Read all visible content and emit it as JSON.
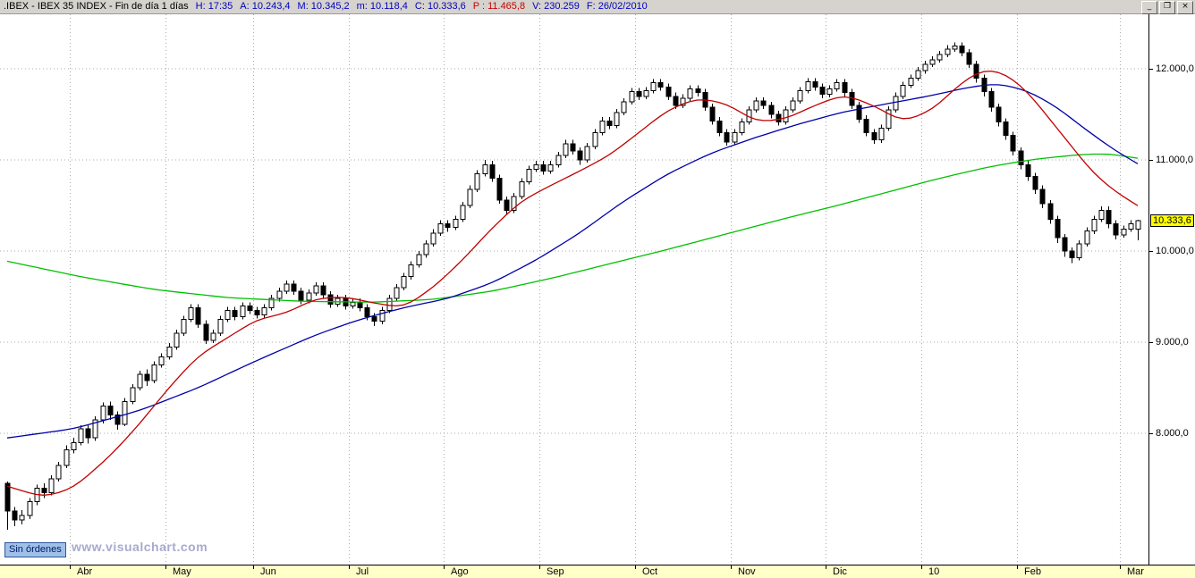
{
  "window": {
    "title_segments": [
      {
        "text": ".IBEX - IBEX 35 INDEX - Fin de día 1 días",
        "color": "#000000"
      },
      {
        "text": "H: 17:35",
        "color": "#0000c0"
      },
      {
        "text": "A: 10.243,4",
        "color": "#0000c0"
      },
      {
        "text": "M: 10.345,2",
        "color": "#0000c0"
      },
      {
        "text": "m: 10.118,4",
        "color": "#0000c0"
      },
      {
        "text": "C: 10.333,6",
        "color": "#0000c0"
      },
      {
        "text": "P : 11.465,8",
        "color": "#c80000"
      },
      {
        "text": "V: 230.259",
        "color": "#0000c0"
      },
      {
        "text": "F: 26/02/2010",
        "color": "#0000c0"
      }
    ],
    "buttons": {
      "minimize": "_",
      "restore": "❐",
      "close": "×"
    }
  },
  "footer": {
    "orders_label": "Sin órdenes",
    "watermark": "www.visualchart.com"
  },
  "chart_data": {
    "type": "candlestick",
    "title": ".IBEX - IBEX 35 INDEX",
    "period": "Fin de día 1 días",
    "last_quote": {
      "time": "17:35",
      "open": 10243.4,
      "high": 10345.2,
      "low": 10118.4,
      "close": 10333.6,
      "prev": 11465.8,
      "volume": 230259,
      "date": "26/02/2010"
    },
    "grid": {
      "color": "#ababab",
      "dash": "1,3"
    },
    "colors": {
      "up_fill": "#ffffff",
      "down_fill": "#000000",
      "outline": "#000000",
      "ma_fast": "#c00000",
      "ma_medium": "#0000a8",
      "ma_slow": "#00c000",
      "price_tag_bg": "#ffff00"
    },
    "y_axis": {
      "view_max": 12600,
      "view_min": 6560,
      "ticks": [
        {
          "value": 12000,
          "label": "12.000,0"
        },
        {
          "value": 11000,
          "label": "11.000,0"
        },
        {
          "value": 10000,
          "label": "10.000,0"
        },
        {
          "value": 9000,
          "label": "9.000,0"
        },
        {
          "value": 8000,
          "label": "8.000,0"
        }
      ]
    },
    "current_price": {
      "label": "10.333,6",
      "value": 10333.6
    },
    "months": [
      {
        "label": "Abr",
        "i": 9
      },
      {
        "label": "May",
        "i": 22
      },
      {
        "label": "Jun",
        "i": 34
      },
      {
        "label": "Jul",
        "i": 47
      },
      {
        "label": "Ago",
        "i": 60
      },
      {
        "label": "Sep",
        "i": 73
      },
      {
        "label": "Oct",
        "i": 86
      },
      {
        "label": "Nov",
        "i": 99
      },
      {
        "label": "Dic",
        "i": 112
      },
      {
        "label": "10",
        "i": 125
      },
      {
        "label": "Feb",
        "i": 138
      },
      {
        "label": "Mar",
        "i": 152
      }
    ],
    "candles": [
      [
        7450,
        7470,
        6940,
        7150
      ],
      [
        7150,
        7190,
        6980,
        7050
      ],
      [
        7050,
        7160,
        7000,
        7100
      ],
      [
        7100,
        7290,
        7060,
        7250
      ],
      [
        7250,
        7440,
        7210,
        7400
      ],
      [
        7400,
        7450,
        7290,
        7350
      ],
      [
        7350,
        7540,
        7320,
        7500
      ],
      [
        7500,
        7690,
        7470,
        7650
      ],
      [
        7650,
        7870,
        7620,
        7820
      ],
      [
        7820,
        7950,
        7780,
        7900
      ],
      [
        7900,
        8090,
        7870,
        8050
      ],
      [
        8050,
        8090,
        7890,
        7950
      ],
      [
        7950,
        8190,
        7920,
        8150
      ],
      [
        8150,
        8340,
        8110,
        8300
      ],
      [
        8300,
        8350,
        8150,
        8200
      ],
      [
        8200,
        8240,
        8040,
        8100
      ],
      [
        8100,
        8390,
        8080,
        8350
      ],
      [
        8350,
        8540,
        8320,
        8500
      ],
      [
        8500,
        8690,
        8470,
        8650
      ],
      [
        8650,
        8700,
        8520,
        8580
      ],
      [
        8580,
        8790,
        8550,
        8750
      ],
      [
        8750,
        8880,
        8720,
        8840
      ],
      [
        8840,
        8990,
        8810,
        8950
      ],
      [
        8950,
        9140,
        8920,
        9100
      ],
      [
        9100,
        9290,
        9070,
        9250
      ],
      [
        9250,
        9420,
        9220,
        9380
      ],
      [
        9380,
        9420,
        9160,
        9200
      ],
      [
        9200,
        9240,
        8980,
        9020
      ],
      [
        9020,
        9140,
        8990,
        9100
      ],
      [
        9100,
        9290,
        9070,
        9250
      ],
      [
        9250,
        9390,
        9220,
        9350
      ],
      [
        9350,
        9390,
        9240,
        9280
      ],
      [
        9280,
        9440,
        9250,
        9400
      ],
      [
        9400,
        9440,
        9310,
        9350
      ],
      [
        9350,
        9390,
        9260,
        9300
      ],
      [
        9300,
        9420,
        9270,
        9380
      ],
      [
        9380,
        9520,
        9350,
        9480
      ],
      [
        9480,
        9600,
        9450,
        9560
      ],
      [
        9560,
        9680,
        9530,
        9640
      ],
      [
        9640,
        9680,
        9520,
        9560
      ],
      [
        9560,
        9600,
        9420,
        9460
      ],
      [
        9460,
        9580,
        9430,
        9540
      ],
      [
        9540,
        9660,
        9510,
        9620
      ],
      [
        9620,
        9660,
        9480,
        9520
      ],
      [
        9520,
        9560,
        9380,
        9420
      ],
      [
        9420,
        9520,
        9390,
        9480
      ],
      [
        9480,
        9520,
        9360,
        9400
      ],
      [
        9400,
        9480,
        9370,
        9440
      ],
      [
        9440,
        9480,
        9340,
        9380
      ],
      [
        9380,
        9420,
        9240,
        9280
      ],
      [
        9280,
        9320,
        9180,
        9230
      ],
      [
        9230,
        9390,
        9200,
        9350
      ],
      [
        9350,
        9520,
        9320,
        9480
      ],
      [
        9480,
        9640,
        9450,
        9600
      ],
      [
        9600,
        9760,
        9570,
        9720
      ],
      [
        9720,
        9890,
        9690,
        9850
      ],
      [
        9850,
        10000,
        9820,
        9960
      ],
      [
        9960,
        10120,
        9930,
        10080
      ],
      [
        10080,
        10240,
        10050,
        10200
      ],
      [
        10200,
        10340,
        10170,
        10300
      ],
      [
        10300,
        10340,
        10210,
        10260
      ],
      [
        10260,
        10390,
        10230,
        10350
      ],
      [
        10350,
        10540,
        10320,
        10500
      ],
      [
        10500,
        10720,
        10470,
        10680
      ],
      [
        10680,
        10890,
        10650,
        10850
      ],
      [
        10850,
        11000,
        10820,
        10950
      ],
      [
        10950,
        10990,
        10760,
        10800
      ],
      [
        10800,
        10840,
        10520,
        10560
      ],
      [
        10560,
        10600,
        10400,
        10450
      ],
      [
        10450,
        10640,
        10420,
        10600
      ],
      [
        10600,
        10800,
        10570,
        10760
      ],
      [
        10760,
        10940,
        10730,
        10900
      ],
      [
        10900,
        10990,
        10870,
        10950
      ],
      [
        10950,
        10990,
        10840,
        10880
      ],
      [
        10880,
        10990,
        10850,
        10950
      ],
      [
        10950,
        11090,
        10920,
        11050
      ],
      [
        11050,
        11220,
        11020,
        11180
      ],
      [
        11180,
        11220,
        11060,
        11100
      ],
      [
        11100,
        11140,
        10950,
        11000
      ],
      [
        11000,
        11190,
        10970,
        11150
      ],
      [
        11150,
        11340,
        11120,
        11300
      ],
      [
        11300,
        11470,
        11270,
        11430
      ],
      [
        11430,
        11470,
        11340,
        11380
      ],
      [
        11380,
        11560,
        11350,
        11520
      ],
      [
        11520,
        11680,
        11490,
        11640
      ],
      [
        11640,
        11790,
        11610,
        11750
      ],
      [
        11750,
        11790,
        11660,
        11700
      ],
      [
        11700,
        11800,
        11670,
        11760
      ],
      [
        11760,
        11890,
        11730,
        11850
      ],
      [
        11850,
        11890,
        11760,
        11800
      ],
      [
        11800,
        11840,
        11660,
        11700
      ],
      [
        11700,
        11740,
        11560,
        11600
      ],
      [
        11600,
        11720,
        11570,
        11680
      ],
      [
        11680,
        11820,
        11650,
        11780
      ],
      [
        11780,
        11820,
        11700,
        11740
      ],
      [
        11740,
        11780,
        11540,
        11580
      ],
      [
        11580,
        11620,
        11390,
        11430
      ],
      [
        11430,
        11470,
        11260,
        11300
      ],
      [
        11300,
        11340,
        11160,
        11200
      ],
      [
        11200,
        11340,
        11170,
        11300
      ],
      [
        11300,
        11460,
        11270,
        11420
      ],
      [
        11420,
        11590,
        11390,
        11550
      ],
      [
        11550,
        11690,
        11520,
        11650
      ],
      [
        11650,
        11690,
        11560,
        11600
      ],
      [
        11600,
        11640,
        11460,
        11500
      ],
      [
        11500,
        11540,
        11380,
        11420
      ],
      [
        11420,
        11590,
        11390,
        11550
      ],
      [
        11550,
        11690,
        11520,
        11650
      ],
      [
        11650,
        11800,
        11620,
        11760
      ],
      [
        11760,
        11900,
        11730,
        11860
      ],
      [
        11860,
        11900,
        11760,
        11800
      ],
      [
        11800,
        11840,
        11680,
        11720
      ],
      [
        11720,
        11820,
        11690,
        11780
      ],
      [
        11780,
        11890,
        11750,
        11850
      ],
      [
        11850,
        11890,
        11700,
        11740
      ],
      [
        11740,
        11780,
        11560,
        11600
      ],
      [
        11600,
        11640,
        11410,
        11450
      ],
      [
        11450,
        11490,
        11260,
        11300
      ],
      [
        11300,
        11340,
        11180,
        11220
      ],
      [
        11220,
        11390,
        11190,
        11350
      ],
      [
        11350,
        11590,
        11320,
        11550
      ],
      [
        11550,
        11740,
        11520,
        11700
      ],
      [
        11700,
        11860,
        11670,
        11820
      ],
      [
        11820,
        11940,
        11790,
        11900
      ],
      [
        11900,
        12020,
        11870,
        11980
      ],
      [
        11980,
        12090,
        11950,
        12050
      ],
      [
        12050,
        12140,
        12020,
        12100
      ],
      [
        12100,
        12200,
        12070,
        12160
      ],
      [
        12160,
        12260,
        12130,
        12220
      ],
      [
        12220,
        12290,
        12190,
        12250
      ],
      [
        12250,
        12290,
        12140,
        12180
      ],
      [
        12180,
        12220,
        12010,
        12050
      ],
      [
        12050,
        12090,
        11850,
        11900
      ],
      [
        11900,
        11940,
        11700,
        11750
      ],
      [
        11750,
        11790,
        11530,
        11580
      ],
      [
        11580,
        11620,
        11370,
        11420
      ],
      [
        11420,
        11460,
        11220,
        11270
      ],
      [
        11270,
        11310,
        11050,
        11100
      ],
      [
        11100,
        11140,
        10900,
        10950
      ],
      [
        10950,
        10990,
        10770,
        10820
      ],
      [
        10820,
        10860,
        10630,
        10680
      ],
      [
        10680,
        10720,
        10470,
        10520
      ],
      [
        10520,
        10560,
        10300,
        10350
      ],
      [
        10350,
        10390,
        10090,
        10150
      ],
      [
        10150,
        10190,
        9940,
        10000
      ],
      [
        10000,
        10040,
        9870,
        9930
      ],
      [
        9930,
        10120,
        9900,
        10080
      ],
      [
        10080,
        10260,
        10050,
        10220
      ],
      [
        10220,
        10390,
        10190,
        10350
      ],
      [
        10350,
        10490,
        10320,
        10450
      ],
      [
        10450,
        10490,
        10250,
        10300
      ],
      [
        10300,
        10340,
        10130,
        10180
      ],
      [
        10180,
        10280,
        10150,
        10240
      ],
      [
        10240,
        10340,
        10210,
        10300
      ],
      [
        10243,
        10345,
        10118,
        10333.6
      ]
    ],
    "ma": [
      {
        "name": "slow-200d",
        "color_key": "ma_slow",
        "points": [
          [
            0,
            9890
          ],
          [
            10,
            9720
          ],
          [
            20,
            9580
          ],
          [
            30,
            9490
          ],
          [
            40,
            9450
          ],
          [
            50,
            9440
          ],
          [
            58,
            9470
          ],
          [
            66,
            9560
          ],
          [
            74,
            9700
          ],
          [
            82,
            9860
          ],
          [
            90,
            10020
          ],
          [
            98,
            10190
          ],
          [
            106,
            10360
          ],
          [
            113,
            10500
          ],
          [
            120,
            10650
          ],
          [
            127,
            10800
          ],
          [
            134,
            10930
          ],
          [
            140,
            11010
          ],
          [
            146,
            11060
          ],
          [
            150,
            11070
          ],
          [
            154,
            11020
          ]
        ]
      },
      {
        "name": "medium-50d",
        "color_key": "ma_medium",
        "points": [
          [
            0,
            7950
          ],
          [
            9,
            8050
          ],
          [
            18,
            8250
          ],
          [
            26,
            8500
          ],
          [
            34,
            8800
          ],
          [
            42,
            9080
          ],
          [
            48,
            9250
          ],
          [
            54,
            9380
          ],
          [
            60,
            9480
          ],
          [
            66,
            9650
          ],
          [
            72,
            9900
          ],
          [
            78,
            10200
          ],
          [
            84,
            10550
          ],
          [
            90,
            10850
          ],
          [
            96,
            11080
          ],
          [
            102,
            11250
          ],
          [
            108,
            11400
          ],
          [
            114,
            11530
          ],
          [
            120,
            11620
          ],
          [
            126,
            11710
          ],
          [
            131,
            11800
          ],
          [
            135,
            11840
          ],
          [
            139,
            11760
          ],
          [
            143,
            11580
          ],
          [
            147,
            11330
          ],
          [
            151,
            11100
          ],
          [
            154,
            10960
          ]
        ]
      },
      {
        "name": "fast-20d",
        "color_key": "ma_fast",
        "points": [
          [
            0,
            7420
          ],
          [
            5,
            7300
          ],
          [
            9,
            7400
          ],
          [
            14,
            7750
          ],
          [
            18,
            8100
          ],
          [
            22,
            8500
          ],
          [
            26,
            8850
          ],
          [
            30,
            9050
          ],
          [
            34,
            9250
          ],
          [
            38,
            9320
          ],
          [
            42,
            9480
          ],
          [
            46,
            9500
          ],
          [
            50,
            9430
          ],
          [
            54,
            9380
          ],
          [
            58,
            9600
          ],
          [
            62,
            9900
          ],
          [
            66,
            10250
          ],
          [
            70,
            10550
          ],
          [
            74,
            10720
          ],
          [
            78,
            10880
          ],
          [
            82,
            11050
          ],
          [
            86,
            11300
          ],
          [
            90,
            11550
          ],
          [
            94,
            11680
          ],
          [
            98,
            11620
          ],
          [
            102,
            11420
          ],
          [
            106,
            11450
          ],
          [
            110,
            11600
          ],
          [
            114,
            11720
          ],
          [
            118,
            11600
          ],
          [
            122,
            11420
          ],
          [
            126,
            11550
          ],
          [
            130,
            11850
          ],
          [
            133,
            12000
          ],
          [
            136,
            11950
          ],
          [
            139,
            11750
          ],
          [
            142,
            11450
          ],
          [
            145,
            11150
          ],
          [
            148,
            10850
          ],
          [
            151,
            10650
          ],
          [
            154,
            10500
          ]
        ]
      }
    ]
  }
}
